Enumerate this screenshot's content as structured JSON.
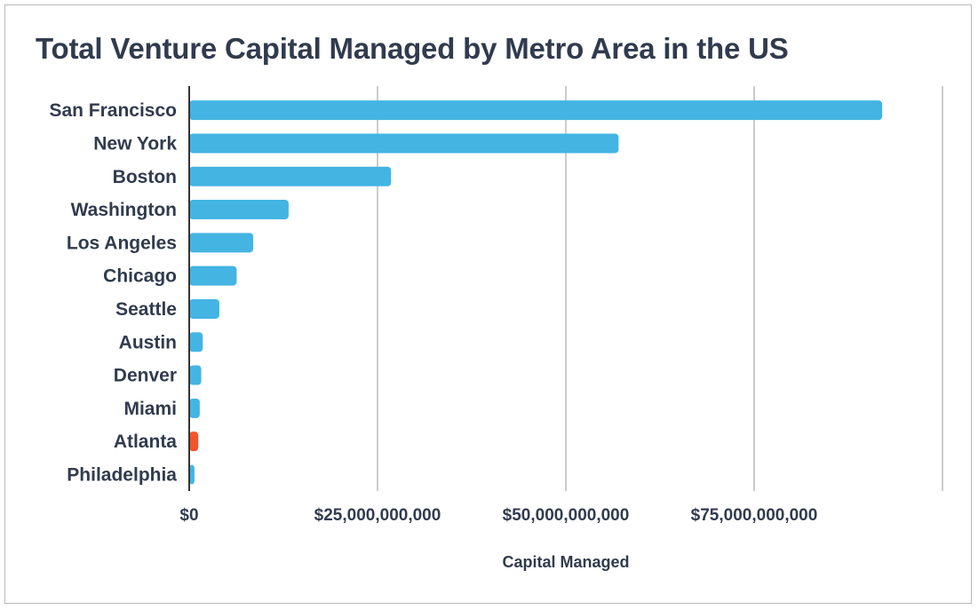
{
  "chart_data": {
    "type": "bar",
    "orientation": "horizontal",
    "title": "Total Venture Capital Managed by Metro Area in the US",
    "xlabel": "Capital Managed",
    "ylabel": "",
    "categories": [
      "San Francisco",
      "New York",
      "Boston",
      "Washington",
      "Los Angeles",
      "Chicago",
      "Seattle",
      "Austin",
      "Denver",
      "Miami",
      "Atlanta",
      "Philadelphia"
    ],
    "values": [
      92000000000,
      57000000000,
      26800000000,
      13200000000,
      8500000000,
      6300000000,
      4000000000,
      1800000000,
      1600000000,
      1400000000,
      1200000000,
      700000000
    ],
    "xlim": [
      0,
      100000000000
    ],
    "xticks": [
      0,
      25000000000,
      50000000000,
      75000000000,
      100000000000
    ],
    "xtick_labels": [
      "$0",
      "$25,000,000,000",
      "$50,000,000,000",
      "$75,000,000,000",
      ""
    ],
    "grid": true,
    "legend": "none",
    "colors": {
      "bar": "#44b4e2",
      "highlight": "#f4542a",
      "text": "#313b4e",
      "grid": "#cccccc",
      "axis": "#333333"
    },
    "highlight_category": "Atlanta"
  }
}
